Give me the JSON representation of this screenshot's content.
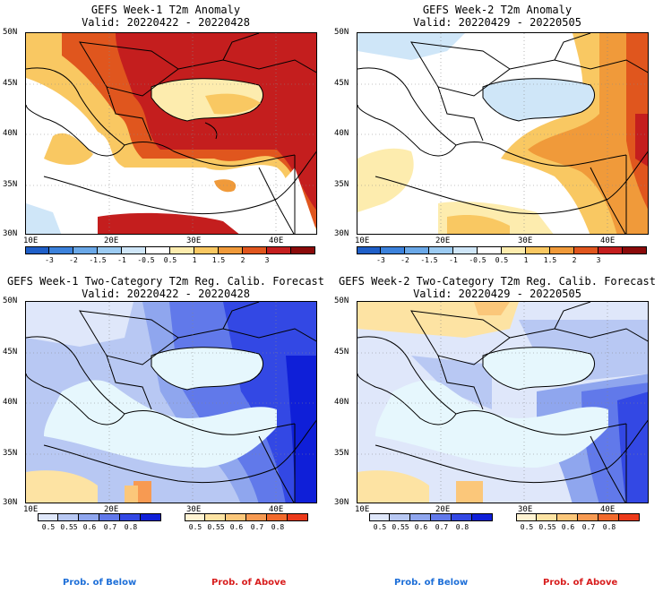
{
  "panels": [
    {
      "id": "w1anom",
      "title1": "GEFS Week-1 T2m Anomaly",
      "title2": "Valid: 20220422 - 20220428"
    },
    {
      "id": "w2anom",
      "title1": "GEFS Week-2 T2m Anomaly",
      "title2": "Valid: 20220429 - 20220505"
    },
    {
      "id": "w1prob",
      "title1": "GEFS Week-1 Two-Category T2m Reg. Calib. Forecast",
      "title2": "Valid: 20220422 - 20220428"
    },
    {
      "id": "w2prob",
      "title1": "GEFS Week-2 Two-Category T2m Reg. Calib. Forecast",
      "title2": "Valid: 20220429 - 20220505"
    }
  ],
  "axes": {
    "lat_labels": [
      "50N",
      "45N",
      "40N",
      "35N",
      "30N"
    ],
    "lon_labels": [
      "10E",
      "20E",
      "30E",
      "40E"
    ]
  },
  "anomaly_colorbar": {
    "labels": [
      "-3",
      "-2",
      "-1.5",
      "-1",
      "-0.5",
      "0.5",
      "1",
      "1.5",
      "2",
      "3"
    ],
    "colors": [
      "#1f5fc8",
      "#3c82dc",
      "#6aa8e8",
      "#9ccbf2",
      "#cfe6f8",
      "#ffffff",
      "#fdecae",
      "#f9c862",
      "#f09a3a",
      "#e0561e",
      "#c41e1e",
      "#8b0a0a"
    ]
  },
  "prob_colorbar": {
    "labels": [
      "0.5",
      "0.55",
      "0.6",
      "0.7",
      "0.8"
    ],
    "below_colors": [
      "#dfe7fa",
      "#b8c8f3",
      "#8fa6ee",
      "#6179ea",
      "#3348e4",
      "#0f1fd8"
    ],
    "above_colors": [
      "#fff3d2",
      "#fde3a3",
      "#fbc77a",
      "#f79a52",
      "#f26a2c",
      "#ec3a1a"
    ]
  },
  "footer": {
    "below_label": "Prob. of Below",
    "above_label": "Prob. of Above",
    "below_color": "#1e6fd8",
    "above_color": "#d81e1e"
  }
}
